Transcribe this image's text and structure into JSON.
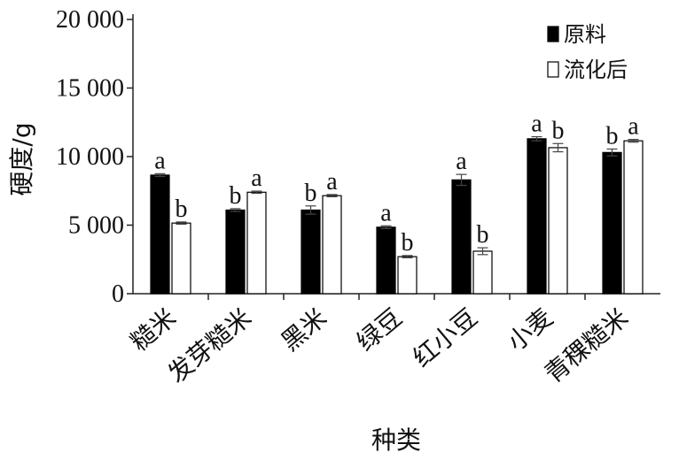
{
  "chart_data": {
    "type": "bar",
    "ylabel": "硬度/g",
    "xlabel": "种类",
    "ylim": [
      0,
      20000
    ],
    "yticks": [
      {
        "value": 0,
        "label": "0"
      },
      {
        "value": 5000,
        "label": "5 000"
      },
      {
        "value": 10000,
        "label": "10 000"
      },
      {
        "value": 15000,
        "label": "15 000"
      },
      {
        "value": 20000,
        "label": "20 000"
      }
    ],
    "categories": [
      "糙米",
      "发芽糙米",
      "黑米",
      "绿豆",
      "红小豆",
      "小麦",
      "青稞糙米"
    ],
    "series": [
      {
        "name": "原料",
        "color": "#000000",
        "values": [
          8650,
          6100,
          6100,
          4850,
          8300,
          11300,
          10300
        ],
        "errors": [
          100,
          100,
          300,
          100,
          400,
          150,
          250
        ],
        "letters": [
          "a",
          "b",
          "b",
          "a",
          "a",
          "a",
          "b"
        ]
      },
      {
        "name": "流化后",
        "color": "#ffffff",
        "values": [
          5150,
          7400,
          7150,
          2700,
          3100,
          10650,
          11150
        ],
        "errors": [
          80,
          80,
          80,
          80,
          250,
          300,
          100
        ],
        "letters": [
          "b",
          "a",
          "a",
          "b",
          "b",
          "b",
          "a"
        ]
      }
    ],
    "legend_position": "top-right",
    "grid": false
  }
}
